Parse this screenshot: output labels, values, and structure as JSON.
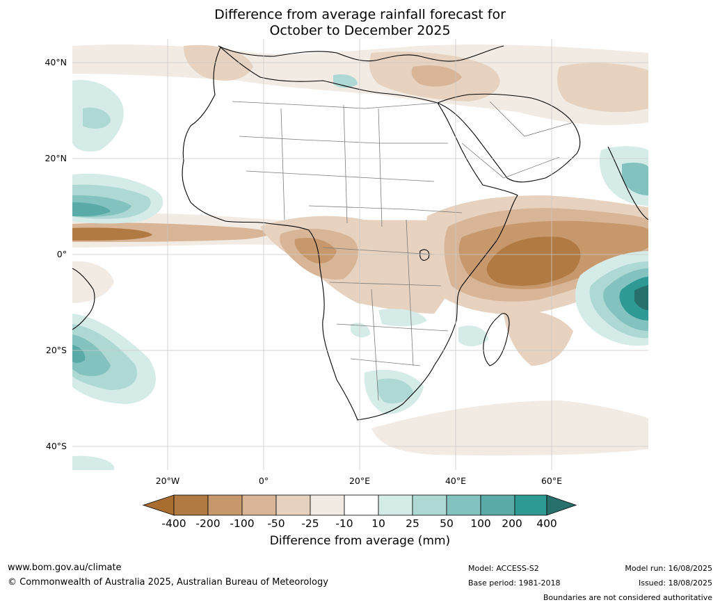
{
  "title": {
    "line1": "Difference from average rainfall forecast for",
    "line2": "October to December 2025"
  },
  "map": {
    "lat_labels": [
      "40°N",
      "20°N",
      "0°",
      "20°S",
      "40°S"
    ],
    "lon_labels": [
      "20°W",
      "0°",
      "20°E",
      "40°E",
      "60°E"
    ],
    "colors": {
      "dry_extreme": "#a86d2f",
      "dry_200": "#b07a42",
      "dry_100": "#c8986d",
      "dry_50": "#d7b596",
      "dry_25": "#e6d2bf",
      "dry_10": "#f2ebe3",
      "neutral": "#ffffff",
      "wet_10": "#d4ebe8",
      "wet_25": "#aed8d4",
      "wet_50": "#83c2bf",
      "wet_100": "#5aaaa8",
      "wet_200": "#2f9994",
      "wet_extreme": "#27706c",
      "coast": "#000000",
      "border": "#7a7a7a",
      "grid": "#c8c8c8"
    }
  },
  "legend": {
    "ticks": [
      "-400",
      "-200",
      "-100",
      "-50",
      "-25",
      "-10",
      "10",
      "25",
      "50",
      "100",
      "200",
      "400"
    ],
    "label": "Difference from average (mm)"
  },
  "footer": {
    "website": "www.bom.gov.au/climate",
    "copyright": "© Commonwealth of Australia 2025, Australian Bureau of Meteorology",
    "model": "Model: ACCESS-S2",
    "base_period": "Base period: 1981-2018",
    "model_run": "Model run: 16/08/2025",
    "issued": "Issued: 18/08/2025",
    "disclaimer": "Boundaries are not considered authoritative"
  }
}
